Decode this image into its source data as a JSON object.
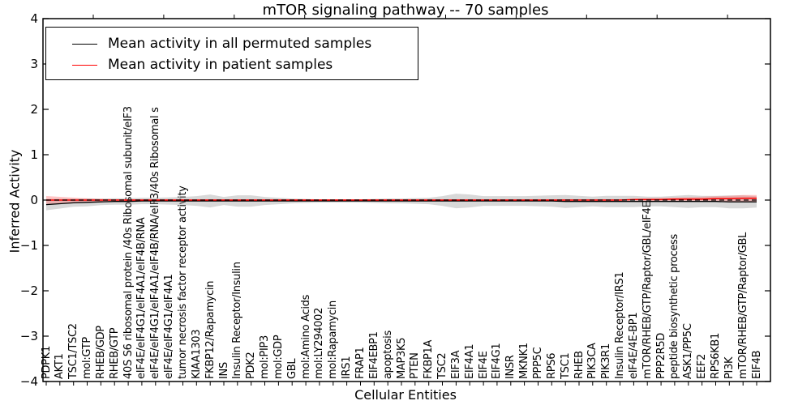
{
  "chart_data": {
    "type": "line",
    "title": "mTOR signaling pathway -- 70 samples",
    "xlabel": "Cellular Entities",
    "ylabel": "Inferred Activity",
    "ylim": [
      -4,
      4
    ],
    "yticks": [
      4,
      3,
      2,
      1,
      0,
      -1,
      -2,
      -3,
      -4
    ],
    "ytick_labels": [
      "4",
      "3",
      "2",
      "1",
      "0",
      "−1",
      "−2",
      "−3",
      "−4"
    ],
    "grid": false,
    "legend_position": "upper left",
    "categories": [
      "PDPK1",
      "AKT1",
      "TSC1/TSC2",
      "mol:GTP",
      "RHEB/GDP",
      "RHEB/GTP",
      "40S S6 ribosomal protein /40s Ribosomal subunit/eIF3",
      "eIF4E/eIF4G1/eIF4A1/eIF4B/RNA",
      "eIF4E/eIF4G1/eIF4A1/eIF4B/RNA/eIF3/40s Ribosomal s",
      "eIF4E/eIF4G1/eIF4A1",
      "tumor necrosis factor receptor activity",
      "KIAA1303",
      "FKBP12/Rapamycin",
      "INS",
      "Insulin Receptor/Insulin",
      "PDK2",
      "mol:PIP3",
      "mol:GDP",
      "GBL",
      "mol:Amino Acids",
      "mol:LY294002",
      "mol:Rapamycin",
      "IRS1",
      "FRAP1",
      "EIF4EBP1",
      "apoptosis",
      "MAP3K5",
      "PTEN",
      "FKBP1A",
      "TSC2",
      "EIF3A",
      "EIF4A1",
      "EIF4E",
      "EIF4G1",
      "INSR",
      "MKNK1",
      "PPP5C",
      "RPS6",
      "TSC1",
      "RHEB",
      "PIK3CA",
      "PIK3R1",
      "Insulin Receptor/IRS1",
      "eIF4E/4E-BP1",
      "mTOR/RHEB/GTP/Raptor/GBL/eIF4E",
      "PPP2R5D",
      "peptide biosynthetic process",
      "ASK1/PP5C",
      "EEF2",
      "RPS6KB1",
      "PI3K",
      "mTOR/RHEB/GTP/Raptor/GBL",
      "EIF4B"
    ],
    "series": [
      {
        "name": "Mean activity in all permuted samples",
        "color": "#000000",
        "band_color": "#999999",
        "values": [
          -0.1,
          -0.08,
          -0.06,
          -0.05,
          -0.04,
          -0.03,
          -0.03,
          -0.02,
          -0.02,
          -0.02,
          -0.02,
          -0.02,
          -0.02,
          -0.02,
          -0.02,
          -0.02,
          -0.02,
          -0.02,
          -0.02,
          -0.02,
          -0.02,
          -0.02,
          -0.02,
          -0.02,
          -0.02,
          -0.02,
          -0.02,
          -0.02,
          -0.02,
          -0.02,
          -0.02,
          -0.02,
          -0.02,
          -0.02,
          -0.02,
          -0.02,
          -0.02,
          -0.02,
          -0.03,
          -0.03,
          -0.03,
          -0.03,
          -0.03,
          -0.03,
          -0.03,
          -0.03,
          -0.03,
          -0.03,
          -0.03,
          -0.03,
          -0.04,
          -0.04,
          -0.04
        ],
        "band": [
          0.125,
          0.107,
          0.089,
          0.089,
          0.071,
          0.071,
          0.071,
          0.071,
          0.071,
          0.08,
          0.089,
          0.107,
          0.143,
          0.089,
          0.125,
          0.125,
          0.089,
          0.071,
          0.054,
          0.045,
          0.036,
          0.036,
          0.036,
          0.036,
          0.045,
          0.054,
          0.054,
          0.063,
          0.071,
          0.107,
          0.161,
          0.143,
          0.107,
          0.107,
          0.107,
          0.107,
          0.116,
          0.125,
          0.143,
          0.125,
          0.107,
          0.125,
          0.125,
          0.125,
          0.107,
          0.107,
          0.125,
          0.143,
          0.125,
          0.125,
          0.143,
          0.143,
          0.125
        ]
      },
      {
        "name": "Mean activity in patient samples",
        "color": "#ff0000",
        "band_color": "#ff6666",
        "values": [
          0,
          0,
          0,
          0,
          0,
          0,
          0,
          0,
          0,
          0,
          0,
          0,
          0,
          0,
          0,
          0,
          0,
          0,
          0,
          0,
          0,
          0,
          0,
          0,
          0,
          0,
          0,
          0,
          0,
          0,
          0,
          0,
          0,
          0,
          0,
          0,
          0,
          0,
          0,
          0,
          0,
          0,
          0,
          0.01,
          0.01,
          0.01,
          0.02,
          0.02,
          0.02,
          0.03,
          0.03,
          0.04,
          0.04
        ],
        "band": [
          0.089,
          0.071,
          0.054,
          0.036,
          0.027,
          0.018,
          0.018,
          0.018,
          0.018,
          0.018,
          0.018,
          0.018,
          0.018,
          0.018,
          0.018,
          0.018,
          0.018,
          0.018,
          0.018,
          0.018,
          0.018,
          0.018,
          0.018,
          0.018,
          0.018,
          0.018,
          0.018,
          0.018,
          0.018,
          0.018,
          0.018,
          0.018,
          0.018,
          0.018,
          0.018,
          0.018,
          0.018,
          0.018,
          0.018,
          0.018,
          0.018,
          0.018,
          0.018,
          0.018,
          0.027,
          0.036,
          0.036,
          0.045,
          0.054,
          0.054,
          0.063,
          0.071,
          0.071
        ]
      }
    ],
    "zero_line": {
      "value": 0,
      "style": "dashed",
      "color": "#000000"
    }
  }
}
